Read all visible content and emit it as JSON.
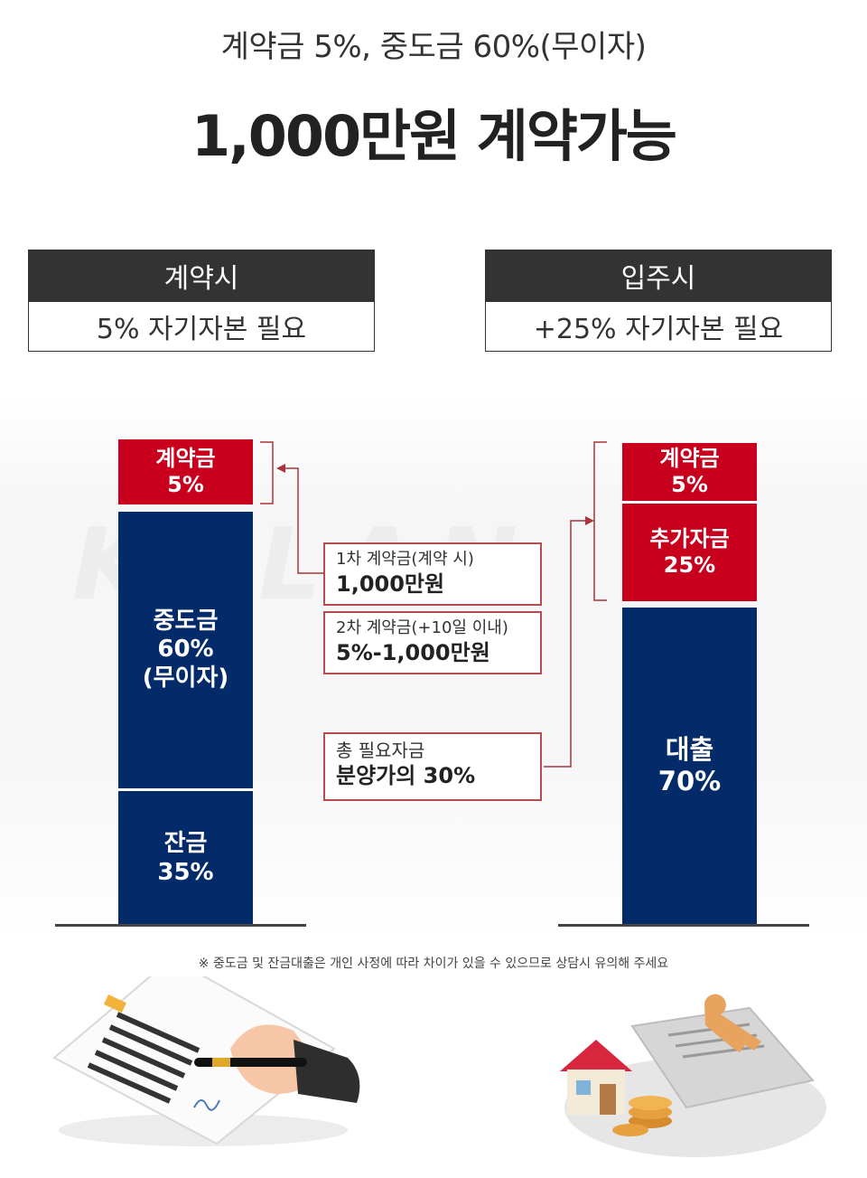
{
  "header": {
    "subtitle": "계약금 5%, 중도금 60%(무이자)",
    "headline": "1,000만원 계약가능"
  },
  "boxes": [
    {
      "title": "계약시",
      "value": "5% 자기자본 필요"
    },
    {
      "title": "입주시",
      "value": "+25% 자기자본 필요"
    }
  ],
  "watermark": "KPLAN",
  "left_bar": {
    "segments": [
      {
        "label": "계약금",
        "value": "5%",
        "color": "#c8001e"
      },
      {
        "label": "중도금",
        "value": "60%",
        "extra": "(무이자)",
        "color": "#032b6a"
      },
      {
        "label": "잔금",
        "value": "35%",
        "color": "#032b6a"
      }
    ]
  },
  "right_bar": {
    "segments": [
      {
        "label": "계약금",
        "value": "5%",
        "color": "#c8001e"
      },
      {
        "label": "추가자금",
        "value": "25%",
        "color": "#c8001e"
      },
      {
        "label": "대출",
        "value": "70%",
        "color": "#032b6a"
      }
    ]
  },
  "callouts": [
    {
      "line1": "1차 계약금(계약 시)",
      "line2": "1,000만원"
    },
    {
      "line1": "2차 계약금(+10일 이내)",
      "line2": "5%-1,000만원"
    },
    {
      "line1": "총 필요자금",
      "line2": "분양가의 30%"
    }
  ],
  "note": "※ 중도금 및 잔금대출은 개인 사정에 따라 차이가 있을 수 있으므로 상담시 유의해 주세요",
  "colors": {
    "accent_red": "#c8001e",
    "navy": "#032b6a",
    "dark": "#333333"
  },
  "illustrations": [
    "contract-signing-illustration",
    "house-keys-coins-illustration"
  ]
}
